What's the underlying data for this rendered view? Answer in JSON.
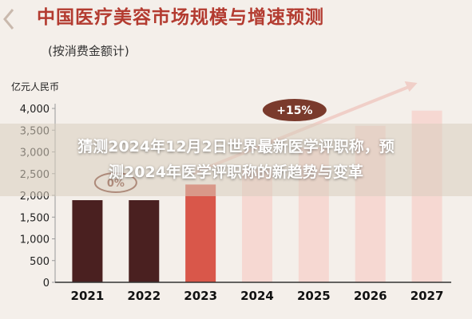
{
  "overlay": {
    "line1": "猜测2024年12月2日世界最新医学评职称，预",
    "line2": "测2024年医学评职称的新趋势与变革"
  },
  "chart_data": {
    "type": "bar",
    "title": "中国医疗美容市场规模与增速预测",
    "subtitle": "(按消费金额计)",
    "ylabel": "亿元人民币",
    "xlabel": "",
    "categories": [
      "2021",
      "2022",
      "2023",
      "2024",
      "2025",
      "2026",
      "2027"
    ],
    "values": [
      1890,
      1890,
      2250,
      2600,
      3100,
      3600,
      3950
    ],
    "ylim": [
      0,
      4000
    ],
    "yticks": [
      0,
      500,
      1000,
      1500,
      2000,
      2500,
      3000,
      3500,
      4000
    ],
    "ytick_labels": [
      "0",
      "500",
      "1,000",
      "1,500",
      "2,000",
      "2,500",
      "3,000",
      "3,500",
      "4,000"
    ],
    "bar_colors": [
      "#4a2020",
      "#4a2020",
      "#d9574a",
      "#f6d8d2",
      "#f6d8d2",
      "#f6d8d2",
      "#f6d8d2"
    ],
    "annotations": [
      {
        "text": "+15%",
        "type": "growth-arrow-badge"
      },
      {
        "text": "0%",
        "type": "growth-badge",
        "between": [
          "2021",
          "2022"
        ]
      }
    ],
    "grid": false,
    "colors": {
      "title": "#b33b30",
      "badge": "#7a3a2c",
      "arrow": "#f0cfc8"
    }
  }
}
